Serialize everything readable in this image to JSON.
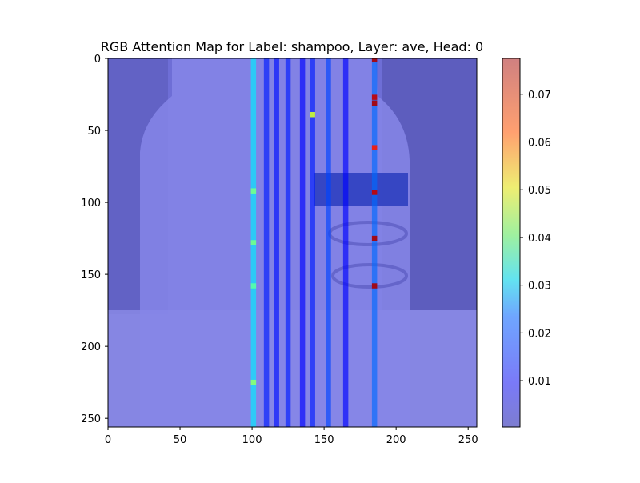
{
  "chart_data": {
    "type": "heatmap",
    "title": "RGB Attention Map for Label: shampoo, Layer: ave, Head: 0",
    "xlabel": "",
    "ylabel": "",
    "xlim": [
      0,
      256
    ],
    "ylim": [
      256,
      0
    ],
    "x_ticks": [
      0,
      50,
      100,
      150,
      200,
      250
    ],
    "y_ticks": [
      0,
      50,
      100,
      150,
      200,
      250
    ],
    "x_tick_labels": [
      "0",
      "50",
      "100",
      "150",
      "200",
      "250"
    ],
    "y_tick_labels": [
      "0",
      "50",
      "100",
      "150",
      "200",
      "250"
    ],
    "colorbar": {
      "min": 0.0003,
      "max": 0.0775,
      "ticks": [
        0.01,
        0.02,
        0.03,
        0.04,
        0.05,
        0.06,
        0.07
      ],
      "tick_labels": [
        "0.01",
        "0.02",
        "0.03",
        "0.04",
        "0.05",
        "0.06",
        "0.07"
      ],
      "colormap": "jet"
    },
    "grid": false,
    "background_image": "shampoo-bottle",
    "attention_columns": [
      {
        "x": 101,
        "value": 0.028
      },
      {
        "x": 110,
        "value": 0.012
      },
      {
        "x": 117,
        "value": 0.011
      },
      {
        "x": 125,
        "value": 0.012
      },
      {
        "x": 135,
        "value": 0.01
      },
      {
        "x": 142,
        "value": 0.012
      },
      {
        "x": 153,
        "value": 0.015
      },
      {
        "x": 165,
        "value": 0.01
      },
      {
        "x": 185,
        "value": 0.018
      }
    ],
    "hotspots": [
      {
        "x": 185,
        "y": 1,
        "value": 0.074
      },
      {
        "x": 185,
        "y": 27,
        "value": 0.072
      },
      {
        "x": 185,
        "y": 31,
        "value": 0.074
      },
      {
        "x": 185,
        "y": 62,
        "value": 0.066
      },
      {
        "x": 185,
        "y": 93,
        "value": 0.072
      },
      {
        "x": 185,
        "y": 125,
        "value": 0.074
      },
      {
        "x": 185,
        "y": 158,
        "value": 0.074
      },
      {
        "x": 142,
        "y": 39,
        "value": 0.045
      },
      {
        "x": 101,
        "y": 92,
        "value": 0.038
      },
      {
        "x": 101,
        "y": 128,
        "value": 0.038
      },
      {
        "x": 101,
        "y": 158,
        "value": 0.036
      },
      {
        "x": 101,
        "y": 225,
        "value": 0.04
      }
    ]
  }
}
